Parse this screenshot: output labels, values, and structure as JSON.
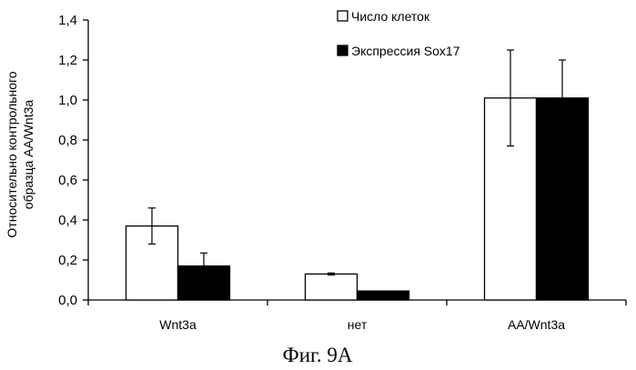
{
  "chart_data": {
    "type": "bar",
    "categories": [
      "Wnt3a",
      "нет",
      "AA/Wnt3a"
    ],
    "series": [
      {
        "name": "Число клеток",
        "values": [
          0.37,
          0.13,
          1.01
        ],
        "errors": [
          0.09,
          0.005,
          0.24
        ],
        "color": "#ffffff"
      },
      {
        "name": "Экспрессия Sox17",
        "values": [
          0.17,
          0.045,
          1.01
        ],
        "errors": [
          0.065,
          0.0,
          0.19
        ],
        "color": "#000000"
      }
    ],
    "ylabel": [
      "Относительно контрольного",
      "образца AA/Wnt3a"
    ],
    "ylim": [
      0,
      1.4
    ],
    "yticks": [
      0,
      0.2,
      0.4,
      0.6,
      0.8,
      1.0,
      1.2,
      1.4
    ],
    "ytick_labels": [
      "0,0",
      "0,2",
      "0,4",
      "0,6",
      "0,8",
      "1,0",
      "1,2",
      "1,4"
    ],
    "grid": false,
    "legend_position": "top-right"
  },
  "caption": "Фиг. 9A"
}
